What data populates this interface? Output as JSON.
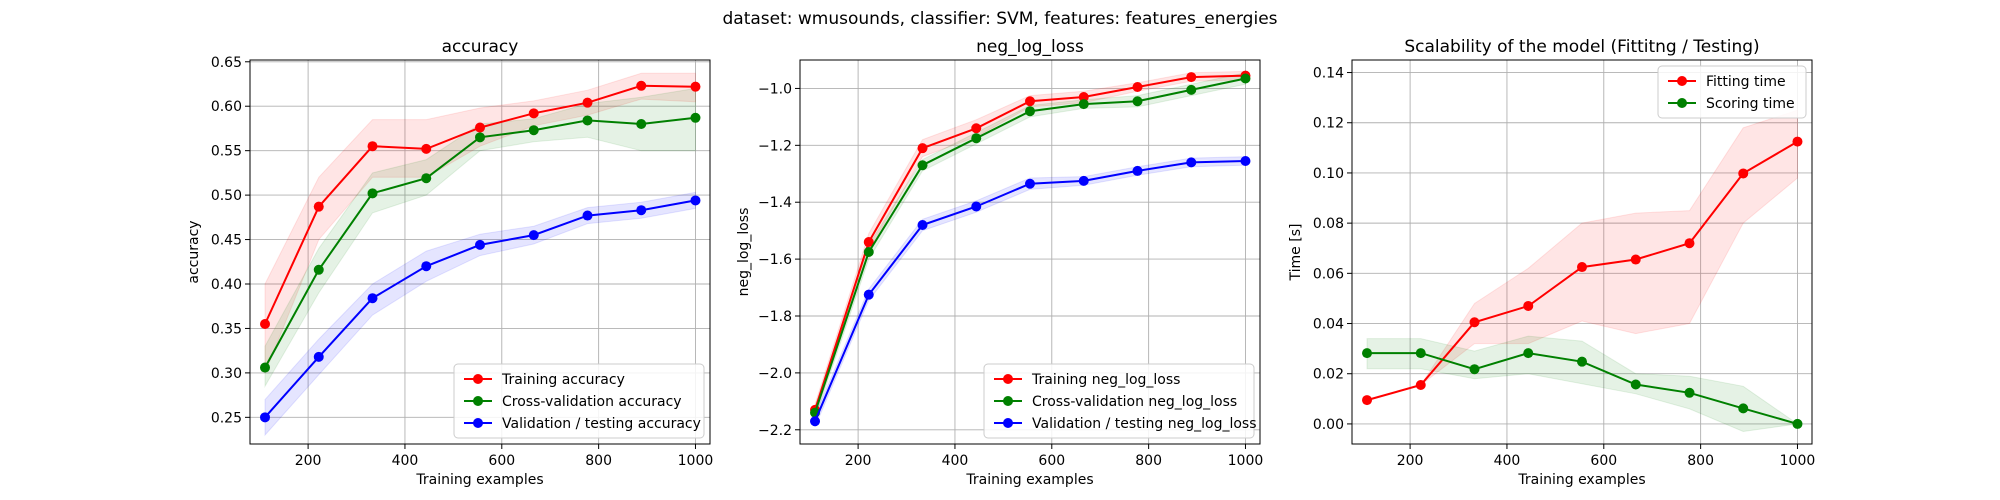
{
  "suptitle": "dataset: wmusounds, classifier: SVM, features: features_energies",
  "chart_data": [
    {
      "type": "line",
      "title": "accuracy",
      "xlabel": "Training examples",
      "ylabel": "accuracy",
      "xlim": [
        80,
        1030
      ],
      "ylim": [
        0.22,
        0.652
      ],
      "xticks": [
        200,
        400,
        600,
        800,
        1000
      ],
      "yticks": [
        0.25,
        0.3,
        0.35,
        0.4,
        0.45,
        0.5,
        0.55,
        0.6,
        0.65
      ],
      "ytick_labels": [
        "0.25",
        "0.30",
        "0.35",
        "0.40",
        "0.45",
        "0.50",
        "0.55",
        "0.60",
        "0.65"
      ],
      "grid": true,
      "legend_position": "lower-right",
      "x": [
        111,
        222,
        333,
        444,
        555,
        666,
        777,
        888,
        1000
      ],
      "series": [
        {
          "name": "Training accuracy",
          "color": "#ff0000",
          "values": [
            0.355,
            0.487,
            0.555,
            0.552,
            0.576,
            0.592,
            0.604,
            0.623,
            0.622
          ],
          "lower": [
            0.3,
            0.45,
            0.52,
            0.52,
            0.555,
            0.578,
            0.59,
            0.608,
            0.605
          ],
          "upper": [
            0.4,
            0.52,
            0.585,
            0.585,
            0.598,
            0.606,
            0.618,
            0.637,
            0.637
          ]
        },
        {
          "name": "Cross-validation accuracy",
          "color": "#008000",
          "values": [
            0.306,
            0.416,
            0.502,
            0.519,
            0.565,
            0.573,
            0.584,
            0.58,
            0.587
          ],
          "lower": [
            0.285,
            0.39,
            0.48,
            0.5,
            0.55,
            0.56,
            0.565,
            0.55,
            0.55
          ],
          "upper": [
            0.33,
            0.44,
            0.525,
            0.54,
            0.58,
            0.586,
            0.603,
            0.61,
            0.62
          ]
        },
        {
          "name": "Validation / testing accuracy",
          "color": "#0000ff",
          "values": [
            0.25,
            0.318,
            0.384,
            0.42,
            0.444,
            0.455,
            0.477,
            0.483,
            0.494
          ],
          "lower": [
            0.23,
            0.298,
            0.365,
            0.403,
            0.432,
            0.445,
            0.468,
            0.474,
            0.485
          ],
          "upper": [
            0.27,
            0.338,
            0.4,
            0.437,
            0.456,
            0.465,
            0.486,
            0.492,
            0.503
          ]
        }
      ]
    },
    {
      "type": "line",
      "title": "neg_log_loss",
      "xlabel": "Training examples",
      "ylabel": "neg_log_loss",
      "xlim": [
        80,
        1030
      ],
      "ylim": [
        -2.25,
        -0.9
      ],
      "xticks": [
        200,
        400,
        600,
        800,
        1000
      ],
      "yticks": [
        -2.2,
        -2.0,
        -1.8,
        -1.6,
        -1.4,
        -1.2,
        -1.0
      ],
      "ytick_labels": [
        "−2.2",
        "−2.0",
        "−1.8",
        "−1.6",
        "−1.4",
        "−1.2",
        "−1.0"
      ],
      "grid": true,
      "legend_position": "lower-right",
      "x": [
        111,
        222,
        333,
        444,
        555,
        666,
        777,
        888,
        1000
      ],
      "series": [
        {
          "name": "Training neg_log_loss",
          "color": "#ff0000",
          "values": [
            -2.13,
            -1.54,
            -1.21,
            -1.14,
            -1.045,
            -1.03,
            -0.995,
            -0.96,
            -0.955
          ],
          "lower": [
            -2.15,
            -1.57,
            -1.24,
            -1.17,
            -1.065,
            -1.05,
            -1.01,
            -0.975,
            -0.97
          ],
          "upper": [
            -2.11,
            -1.51,
            -1.18,
            -1.11,
            -1.025,
            -1.01,
            -0.98,
            -0.945,
            -0.94
          ]
        },
        {
          "name": "Cross-validation neg_log_loss",
          "color": "#008000",
          "values": [
            -2.14,
            -1.575,
            -1.27,
            -1.175,
            -1.08,
            -1.055,
            -1.045,
            -1.005,
            -0.965
          ],
          "lower": [
            -2.16,
            -1.6,
            -1.29,
            -1.195,
            -1.1,
            -1.07,
            -1.065,
            -1.025,
            -0.985
          ],
          "upper": [
            -2.12,
            -1.55,
            -1.25,
            -1.155,
            -1.06,
            -1.04,
            -1.025,
            -0.985,
            -0.945
          ]
        },
        {
          "name": "Validation / testing neg_log_loss",
          "color": "#0000ff",
          "values": [
            -2.17,
            -1.725,
            -1.48,
            -1.415,
            -1.335,
            -1.325,
            -1.29,
            -1.26,
            -1.255
          ],
          "lower": [
            -2.19,
            -1.745,
            -1.5,
            -1.435,
            -1.355,
            -1.34,
            -1.305,
            -1.275,
            -1.27
          ],
          "upper": [
            -2.15,
            -1.705,
            -1.46,
            -1.395,
            -1.315,
            -1.31,
            -1.275,
            -1.245,
            -1.24
          ]
        }
      ]
    },
    {
      "type": "line",
      "title": "Scalability of the model (Fittitng / Testing)",
      "xlabel": "Training examples",
      "ylabel": "Time [s]",
      "xlim": [
        80,
        1030
      ],
      "ylim": [
        -0.008,
        0.145
      ],
      "xticks": [
        200,
        400,
        600,
        800,
        1000
      ],
      "yticks": [
        0.0,
        0.02,
        0.04,
        0.06,
        0.08,
        0.1,
        0.12,
        0.14
      ],
      "ytick_labels": [
        "0.00",
        "0.02",
        "0.04",
        "0.06",
        "0.08",
        "0.10",
        "0.12",
        "0.14"
      ],
      "grid": true,
      "legend_position": "upper-right",
      "x": [
        111,
        222,
        333,
        444,
        555,
        666,
        777,
        888,
        1000
      ],
      "series": [
        {
          "name": "Fitting time",
          "color": "#ff0000",
          "values": [
            0.0095,
            0.0155,
            0.0405,
            0.047,
            0.0625,
            0.0655,
            0.072,
            0.0998,
            0.1125
          ],
          "lower": [
            0.0095,
            0.0155,
            0.032,
            0.032,
            0.041,
            0.036,
            0.04,
            0.08,
            0.098
          ],
          "upper": [
            0.0095,
            0.0155,
            0.048,
            0.062,
            0.08,
            0.084,
            0.085,
            0.118,
            0.125
          ]
        },
        {
          "name": "Scoring time",
          "color": "#008000",
          "values": [
            0.0282,
            0.0282,
            0.0218,
            0.0282,
            0.0248,
            0.0157,
            0.0124,
            0.0062,
            0.0
          ],
          "lower": [
            0.022,
            0.022,
            0.018,
            0.02,
            0.016,
            0.012,
            0.006,
            -0.003,
            0.0
          ],
          "upper": [
            0.034,
            0.034,
            0.029,
            0.035,
            0.033,
            0.02,
            0.019,
            0.015,
            0.0
          ]
        }
      ]
    }
  ]
}
